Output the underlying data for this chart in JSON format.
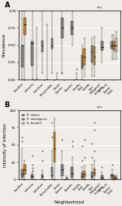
{
  "neighborhood_labels": [
    "Carrollton",
    "Lakeview",
    "Lakeshore",
    "Treme/Lafitte",
    "French\nQuarter",
    "Bywater",
    "Gentilly\nBlvd",
    "Gentilly\nEast",
    "Hollygrove/\nLeonidas",
    "St. Roch/\nElysian\nFields"
  ],
  "colors": {
    "rattus": "#888888",
    "norvegicus": "#cc8822",
    "freetail": "#e8e0c0"
  },
  "panel_A": {
    "title": "A",
    "ylabel": "Prevalence",
    "ylim": [
      0.0,
      1.0
    ],
    "yticks": [
      0.0,
      0.25,
      0.5,
      0.75,
      1.0
    ],
    "ytick_labels": [
      "0.00",
      "0.25",
      "0.50",
      "0.75",
      "1.00"
    ],
    "annotation": "***",
    "rattus_boxes": [
      {
        "med": 0.5,
        "q1": 0.18,
        "q3": 0.5,
        "whislo": 0.0,
        "whishi": 1.0,
        "fliers": []
      },
      {
        "med": 0.53,
        "q1": 0.2,
        "q3": 0.55,
        "whislo": 0.0,
        "whishi": 1.0,
        "fliers": [
          0.0
        ]
      },
      {
        "med": 0.5,
        "q1": 0.4,
        "q3": 0.57,
        "whislo": 0.1,
        "whishi": 1.0,
        "fliers": []
      },
      {
        "med": 0.5,
        "q1": 0.45,
        "q3": 0.6,
        "whislo": 0.1,
        "whishi": 1.0,
        "fliers": []
      },
      {
        "med": 0.75,
        "q1": 0.6,
        "q3": 0.9,
        "whislo": 0.1,
        "whishi": 1.0,
        "fliers": [
          0.1
        ]
      },
      {
        "med": 0.75,
        "q1": 0.65,
        "q3": 0.85,
        "whislo": 0.5,
        "whishi": 1.0,
        "fliers": []
      },
      {
        "med": 0.2,
        "q1": 0.15,
        "q3": 0.35,
        "whislo": 0.0,
        "whishi": 0.5,
        "fliers": []
      },
      {
        "med": 0.4,
        "q1": 0.25,
        "q3": 0.5,
        "whislo": 0.05,
        "whishi": 0.6,
        "fliers": []
      },
      {
        "med": 0.47,
        "q1": 0.42,
        "q3": 0.55,
        "whislo": 0.25,
        "whishi": 0.75,
        "fliers": []
      },
      {
        "med": 0.5,
        "q1": 0.45,
        "q3": 0.55,
        "whislo": 0.3,
        "whishi": 0.65,
        "fliers": []
      }
    ],
    "norvegicus_boxes": [
      {
        "med": 0.8,
        "q1": 0.65,
        "q3": 0.9,
        "whislo": 0.0,
        "whishi": 1.0,
        "fliers": []
      },
      null,
      null,
      null,
      null,
      null,
      {
        "med": 0.33,
        "q1": 0.22,
        "q3": 0.45,
        "whislo": 0.05,
        "whishi": 0.6,
        "fliers": []
      },
      {
        "med": 0.33,
        "q1": 0.22,
        "q3": 0.48,
        "whislo": 0.05,
        "whishi": 0.62,
        "fliers": []
      },
      null,
      {
        "med": 0.5,
        "q1": 0.42,
        "q3": 0.55,
        "whislo": 0.3,
        "whishi": 0.65,
        "fliers": []
      }
    ],
    "freetail_boxes": [
      null,
      {
        "med": 0.0,
        "q1": 0.0,
        "q3": 0.0,
        "whislo": 0.0,
        "whishi": 0.75,
        "fliers": []
      },
      {
        "med": 0.0,
        "q1": 0.0,
        "q3": 0.0,
        "whislo": 0.0,
        "whishi": 0.8,
        "fliers": []
      },
      {
        "med": 0.0,
        "q1": 0.0,
        "q3": 0.0,
        "whislo": 0.0,
        "whishi": 0.1,
        "fliers": []
      },
      null,
      {
        "med": 0.0,
        "q1": 0.0,
        "q3": 0.0,
        "whislo": 0.0,
        "whishi": 0.1,
        "fliers": [
          0.15
        ]
      },
      null,
      null,
      null,
      {
        "med": 0.5,
        "q1": 0.4,
        "q3": 0.6,
        "whislo": 0.3,
        "whishi": 0.7,
        "fliers": []
      }
    ]
  },
  "panel_B": {
    "title": "B",
    "ylabel": "Intensity of infection",
    "xlabel": "Neighborhood",
    "ylim": [
      0,
      100
    ],
    "yticks": [
      0,
      25,
      50,
      75,
      100
    ],
    "ytick_labels": [
      "0",
      "25",
      "50",
      "75",
      "100"
    ],
    "annotation": "***",
    "rattus_boxes": [
      {
        "med": 7,
        "q1": 3,
        "q3": 15,
        "whislo": 0,
        "whishi": 45,
        "fliers": [
          55,
          62
        ]
      },
      {
        "med": 5,
        "q1": 2,
        "q3": 7,
        "whislo": 0,
        "whishi": 11,
        "fliers": [
          13,
          17,
          22,
          35
        ]
      },
      {
        "med": 5,
        "q1": 2,
        "q3": 7,
        "whislo": 0,
        "whishi": 13,
        "fliers": [
          28,
          42
        ]
      },
      {
        "med": 6,
        "q1": 3,
        "q3": 18,
        "whislo": 0,
        "whishi": 42,
        "fliers": [
          62,
          82
        ]
      },
      {
        "med": 14,
        "q1": 5,
        "q3": 22,
        "whislo": 0,
        "whishi": 42,
        "fliers": [
          58
        ]
      },
      {
        "med": 9,
        "q1": 3,
        "q3": 18,
        "whislo": 0,
        "whishi": 32,
        "fliers": [
          48,
          55
        ]
      },
      {
        "med": 5,
        "q1": 2,
        "q3": 10,
        "whislo": 0,
        "whishi": 18,
        "fliers": [
          28,
          48
        ]
      },
      {
        "med": 5,
        "q1": 2,
        "q3": 11,
        "whislo": 0,
        "whishi": 22,
        "fliers": [
          32,
          52
        ]
      },
      {
        "med": 3,
        "q1": 1,
        "q3": 6,
        "whislo": 0,
        "whishi": 11,
        "fliers": [
          18
        ]
      },
      {
        "med": 6,
        "q1": 2,
        "q3": 8,
        "whislo": 0,
        "whishi": 14,
        "fliers": [
          22
        ]
      }
    ],
    "norvegicus_boxes": [
      {
        "med": 15,
        "q1": 7,
        "q3": 22,
        "whislo": 0,
        "whishi": 28,
        "fliers": []
      },
      null,
      null,
      {
        "med": 45,
        "q1": 25,
        "q3": 68,
        "whislo": 0,
        "whishi": 88,
        "fliers": []
      },
      null,
      null,
      {
        "med": 8,
        "q1": 3,
        "q3": 12,
        "whislo": 0,
        "whishi": 20,
        "fliers": [
          32,
          58
        ]
      },
      {
        "med": 10,
        "q1": 5,
        "q3": 16,
        "whislo": 0,
        "whishi": 28,
        "fliers": [
          42,
          72,
          82
        ]
      },
      null,
      {
        "med": 3,
        "q1": 1,
        "q3": 5,
        "whislo": 0,
        "whishi": 8,
        "fliers": []
      }
    ],
    "freetail_boxes": [
      null,
      null,
      null,
      null,
      {
        "med": 2,
        "q1": 1,
        "q3": 3,
        "whislo": 0,
        "whishi": 5,
        "fliers": []
      },
      null,
      null,
      null,
      null,
      {
        "med": 2,
        "q1": 1,
        "q3": 4,
        "whislo": 0,
        "whishi": 6,
        "fliers": []
      }
    ]
  },
  "legend": {
    "rattus_label": "R. rattus",
    "norvegicus_label": "R. norvegicus",
    "freetail_label": "S. freetail"
  },
  "background_color": "#f0ede8",
  "grid_color": "#ffffff"
}
